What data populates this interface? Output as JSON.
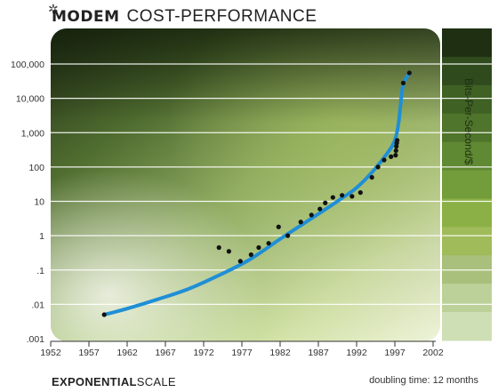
{
  "title": {
    "bold": "Modem",
    "light": "Cost-Performance"
  },
  "footer": {
    "scale_bold": "Exponential",
    "scale_light": "Scale",
    "doubling": "doubling time: 12 months"
  },
  "colors": {
    "curve": "#1f8fd6",
    "point": "#111111",
    "bg_dark": "#1d2a14",
    "bg_light": "#eef3da"
  },
  "chart_data": {
    "type": "scatter",
    "title": "Modem Cost-Performance",
    "ylabel": "Bits-Per-Second/$",
    "xlabel": "",
    "y_scale": "log",
    "xlim": [
      1952,
      2002
    ],
    "ylim": [
      0.001,
      100000
    ],
    "x_ticks": [
      "1952",
      "1957",
      "1962",
      "1967",
      "1972",
      "1977",
      "1982",
      "1987",
      "1992",
      "1997",
      "2002"
    ],
    "y_ticks": [
      "100,000",
      "10,000",
      "1,000",
      "100",
      "10",
      "1",
      ".1",
      ".01",
      ".001"
    ],
    "grid": true,
    "series": [
      {
        "kind": "points",
        "x": [
          1959,
          1974,
          1975.3,
          1976.8,
          1978.2,
          1979.2,
          1980.5,
          1981.8,
          1983,
          1984.7,
          1986.1,
          1987.2,
          1987.9,
          1988.9,
          1990.1,
          1991.4,
          1992.5,
          1994,
          1994.8,
          1995.6,
          1996.5,
          1997.1,
          1997.15,
          1997.2,
          1997.25,
          1997.3,
          1998.1,
          1998.9
        ],
        "y": [
          0.005,
          0.45,
          0.35,
          0.18,
          0.28,
          0.45,
          0.6,
          1.8,
          1,
          2.5,
          4,
          6,
          9,
          13,
          15,
          14,
          18,
          50,
          100,
          160,
          200,
          220,
          300,
          400,
          500,
          600,
          28000,
          55000
        ]
      },
      {
        "kind": "trend",
        "x": [
          1959,
          1962,
          1966,
          1970,
          1974,
          1978,
          1982,
          1985,
          1988,
          1990,
          1992,
          1994,
          1996,
          1997,
          1997.5,
          1998,
          1998.5,
          1999
        ],
        "y": [
          0.005,
          0.0075,
          0.014,
          0.028,
          0.07,
          0.2,
          0.8,
          2.2,
          6,
          12,
          25,
          70,
          250,
          600,
          2000,
          20000,
          40000,
          55000
        ]
      }
    ]
  }
}
